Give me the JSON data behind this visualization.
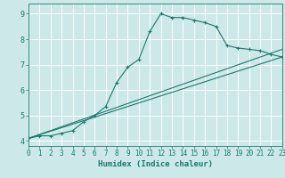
{
  "title": "",
  "xlabel": "Humidex (Indice chaleur)",
  "bg_color": "#cce8e8",
  "grid_color": "#ffffff",
  "line_color": "#1a7a6e",
  "xlim": [
    0,
    23
  ],
  "ylim": [
    3.8,
    9.4
  ],
  "xticks": [
    0,
    1,
    2,
    3,
    4,
    5,
    6,
    7,
    8,
    9,
    10,
    11,
    12,
    13,
    14,
    15,
    16,
    17,
    18,
    19,
    20,
    21,
    22,
    23
  ],
  "yticks": [
    4,
    5,
    6,
    7,
    8,
    9
  ],
  "curve1_x": [
    0,
    1,
    2,
    3,
    4,
    5,
    6,
    7,
    8,
    9,
    10,
    11,
    12,
    13,
    14,
    15,
    16,
    17,
    18,
    19,
    20,
    21,
    22,
    23
  ],
  "curve1_y": [
    4.1,
    4.2,
    4.2,
    4.3,
    4.4,
    4.75,
    5.0,
    5.35,
    6.3,
    6.9,
    7.2,
    8.3,
    9.0,
    8.85,
    8.85,
    8.75,
    8.65,
    8.5,
    7.75,
    7.65,
    7.6,
    7.55,
    7.4,
    7.3
  ],
  "curve2_x": [
    0,
    23
  ],
  "curve2_y": [
    4.1,
    7.6
  ],
  "curve3_x": [
    0,
    23
  ],
  "curve3_y": [
    4.1,
    7.3
  ]
}
